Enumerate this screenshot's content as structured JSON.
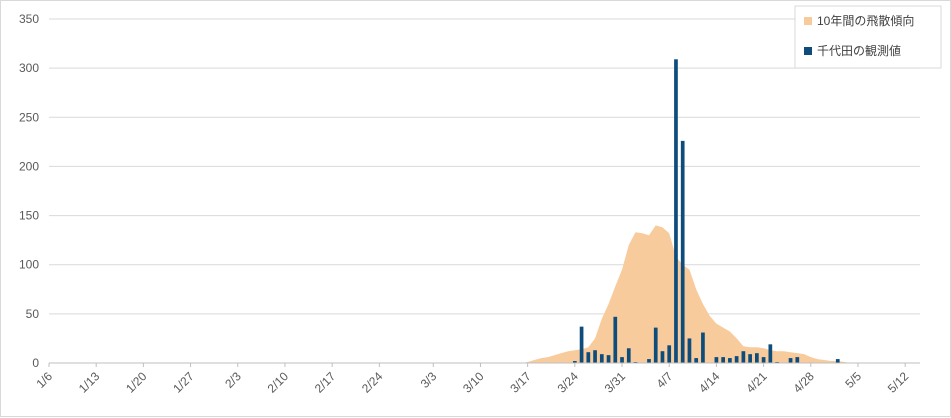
{
  "chart_data": {
    "type": "bar",
    "title": "",
    "xlabel": "",
    "ylabel": "",
    "ylim": [
      0,
      350
    ],
    "y_ticks": [
      "0",
      "50",
      "100",
      "150",
      "200",
      "250",
      "300",
      "350"
    ],
    "x_start": "1/6",
    "x_tick_labels": [
      "1/6",
      "1/13",
      "1/20",
      "1/27",
      "2/3",
      "2/10",
      "2/17",
      "2/24",
      "3/3",
      "3/10",
      "3/17",
      "3/24",
      "3/31",
      "4/7",
      "4/14",
      "4/21",
      "4/28",
      "5/5",
      "5/12"
    ],
    "grid": true,
    "legend_position": "top-right",
    "series": [
      {
        "name": "10年間の飛散傾向",
        "kind": "area",
        "color": "#f8cb9c",
        "points": [
          [
            "3/16",
            0
          ],
          [
            "3/17",
            1
          ],
          [
            "3/18",
            3
          ],
          [
            "3/19",
            5
          ],
          [
            "3/20",
            6
          ],
          [
            "3/21",
            8
          ],
          [
            "3/22",
            10
          ],
          [
            "3/23",
            12
          ],
          [
            "3/24",
            13
          ],
          [
            "3/25",
            14
          ],
          [
            "3/26",
            16
          ],
          [
            "3/27",
            25
          ],
          [
            "3/28",
            45
          ],
          [
            "3/29",
            60
          ],
          [
            "3/30",
            78
          ],
          [
            "3/31",
            95
          ],
          [
            "4/1",
            120
          ],
          [
            "4/2",
            133
          ],
          [
            "4/3",
            132
          ],
          [
            "4/4",
            130
          ],
          [
            "4/5",
            140
          ],
          [
            "4/6",
            138
          ],
          [
            "4/7",
            132
          ],
          [
            "4/8",
            108
          ],
          [
            "4/9",
            100
          ],
          [
            "4/10",
            95
          ],
          [
            "4/11",
            75
          ],
          [
            "4/12",
            60
          ],
          [
            "4/13",
            48
          ],
          [
            "4/14",
            40
          ],
          [
            "4/15",
            36
          ],
          [
            "4/16",
            32
          ],
          [
            "4/17",
            25
          ],
          [
            "4/18",
            17
          ],
          [
            "4/19",
            16
          ],
          [
            "4/20",
            16
          ],
          [
            "4/21",
            15
          ],
          [
            "4/22",
            13
          ],
          [
            "4/23",
            12
          ],
          [
            "4/24",
            12
          ],
          [
            "4/25",
            11
          ],
          [
            "4/26",
            10
          ],
          [
            "4/27",
            9
          ],
          [
            "4/28",
            6
          ],
          [
            "4/29",
            4
          ],
          [
            "4/30",
            3
          ],
          [
            "5/1",
            2
          ],
          [
            "5/2",
            2
          ],
          [
            "5/3",
            1
          ],
          [
            "5/4",
            0
          ]
        ]
      },
      {
        "name": "千代田の観測値",
        "kind": "bar",
        "color": "#0e4d7b",
        "points": [
          [
            "3/24",
            2
          ],
          [
            "3/25",
            37
          ],
          [
            "3/26",
            11
          ],
          [
            "3/27",
            13
          ],
          [
            "3/28",
            9
          ],
          [
            "3/29",
            8
          ],
          [
            "3/30",
            47
          ],
          [
            "3/31",
            6
          ],
          [
            "4/1",
            15
          ],
          [
            "4/2",
            1
          ],
          [
            "4/4",
            4
          ],
          [
            "4/5",
            36
          ],
          [
            "4/6",
            12
          ],
          [
            "4/7",
            18
          ],
          [
            "4/8",
            309
          ],
          [
            "4/9",
            226
          ],
          [
            "4/10",
            25
          ],
          [
            "4/11",
            5
          ],
          [
            "4/12",
            31
          ],
          [
            "4/14",
            6
          ],
          [
            "4/15",
            6
          ],
          [
            "4/16",
            5
          ],
          [
            "4/17",
            7
          ],
          [
            "4/18",
            12
          ],
          [
            "4/19",
            9
          ],
          [
            "4/20",
            10
          ],
          [
            "4/21",
            6
          ],
          [
            "4/22",
            19
          ],
          [
            "4/23",
            1
          ],
          [
            "4/25",
            5
          ],
          [
            "4/26",
            6
          ],
          [
            "5/2",
            4
          ]
        ]
      }
    ]
  }
}
